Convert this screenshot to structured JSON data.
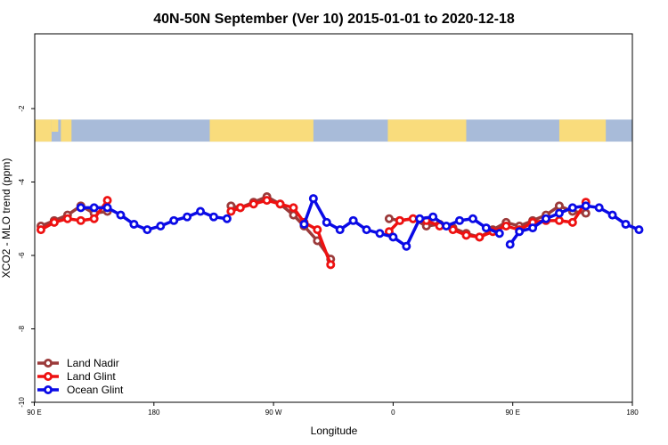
{
  "chart_data": {
    "type": "line",
    "title": "40N-50N September (Ver 10)   2015-01-01 to 2020-12-18",
    "xlabel": "Longitude",
    "ylabel": "XCO2 - MLO trend (ppm)",
    "xlim": [
      90,
      540
    ],
    "ylim": [
      -10,
      0
    ],
    "x_ticks": [
      {
        "value": 90,
        "label": "90 E"
      },
      {
        "value": 180,
        "label": "180"
      },
      {
        "value": 270,
        "label": "90 W"
      },
      {
        "value": 360,
        "label": "0"
      },
      {
        "value": 450,
        "label": "90 E"
      },
      {
        "value": 540,
        "label": "180"
      }
    ],
    "y_ticks": [
      {
        "value": -2,
        "label": "-2"
      },
      {
        "value": -4,
        "label": "-4"
      },
      {
        "value": -6,
        "label": "-6"
      },
      {
        "value": -8,
        "label": "-8"
      },
      {
        "value": -10,
        "label": "-10"
      }
    ],
    "map_band": {
      "ymin": -2.9,
      "ymax": -2.3,
      "ocean_color": "#a8bbd9",
      "land_color": "#f9dc7c"
    },
    "legend_position": "bottom-left",
    "series": [
      {
        "name": "Land Nadir",
        "color": "#9b3a3a",
        "segments": [
          [
            [
              95,
              -5.2
            ],
            [
              105,
              -5.05
            ],
            [
              115,
              -4.9
            ],
            [
              125,
              -4.65
            ],
            [
              135,
              -4.85
            ],
            [
              145,
              -4.8
            ]
          ],
          [
            [
              238,
              -4.65
            ],
            [
              245,
              -4.7
            ],
            [
              255,
              -4.55
            ],
            [
              265,
              -4.4
            ],
            [
              275,
              -4.6
            ],
            [
              285,
              -4.9
            ],
            [
              293,
              -5.2
            ],
            [
              303,
              -5.6
            ],
            [
              313,
              -6.1
            ]
          ],
          [
            [
              357,
              -5.0
            ],
            [
              365,
              -5.05
            ],
            [
              375,
              -5.0
            ],
            [
              385,
              -5.2
            ],
            [
              395,
              -5.15
            ],
            [
              405,
              -5.25
            ],
            [
              415,
              -5.4
            ],
            [
              425,
              -5.5
            ],
            [
              435,
              -5.3
            ],
            [
              445,
              -5.1
            ],
            [
              455,
              -5.2
            ],
            [
              465,
              -5.05
            ],
            [
              475,
              -4.9
            ],
            [
              485,
              -4.65
            ],
            [
              495,
              -4.8
            ],
            [
              505,
              -4.85
            ]
          ]
        ]
      },
      {
        "name": "Land Glint",
        "color": "#ee1111",
        "segments": [
          [
            [
              95,
              -5.3
            ],
            [
              105,
              -5.1
            ],
            [
              115,
              -5.0
            ],
            [
              125,
              -5.05
            ],
            [
              135,
              -5.0
            ],
            [
              145,
              -4.5
            ]
          ],
          [
            [
              238,
              -4.8
            ],
            [
              245,
              -4.7
            ],
            [
              255,
              -4.6
            ],
            [
              265,
              -4.5
            ],
            [
              275,
              -4.6
            ],
            [
              285,
              -4.7
            ],
            [
              293,
              -5.1
            ],
            [
              303,
              -5.3
            ],
            [
              313,
              -6.25
            ]
          ],
          [
            [
              357,
              -5.35
            ],
            [
              365,
              -5.05
            ],
            [
              375,
              -5.0
            ],
            [
              385,
              -5.05
            ],
            [
              395,
              -5.2
            ],
            [
              405,
              -5.3
            ],
            [
              415,
              -5.45
            ],
            [
              425,
              -5.5
            ],
            [
              435,
              -5.35
            ],
            [
              445,
              -5.2
            ],
            [
              455,
              -5.3
            ],
            [
              465,
              -5.1
            ],
            [
              475,
              -5.05
            ],
            [
              485,
              -5.05
            ],
            [
              495,
              -5.1
            ],
            [
              505,
              -4.55
            ]
          ]
        ]
      },
      {
        "name": "Ocean Glint",
        "color": "#0a0ae6",
        "segments": [
          [
            [
              125,
              -4.7
            ],
            [
              135,
              -4.7
            ],
            [
              145,
              -4.7
            ],
            [
              155,
              -4.9
            ],
            [
              165,
              -5.15
            ],
            [
              175,
              -5.3
            ],
            [
              185,
              -5.2
            ],
            [
              195,
              -5.05
            ],
            [
              205,
              -4.95
            ],
            [
              215,
              -4.8
            ],
            [
              225,
              -4.95
            ],
            [
              235,
              -5.0
            ]
          ],
          [
            [
              293,
              -5.15
            ],
            [
              300,
              -4.45
            ],
            [
              310,
              -5.1
            ],
            [
              320,
              -5.3
            ],
            [
              330,
              -5.05
            ],
            [
              340,
              -5.3
            ],
            [
              350,
              -5.4
            ],
            [
              360,
              -5.5
            ],
            [
              370,
              -5.75
            ],
            [
              380,
              -5.0
            ],
            [
              390,
              -4.95
            ],
            [
              400,
              -5.2
            ],
            [
              410,
              -5.05
            ],
            [
              420,
              -5.0
            ],
            [
              430,
              -5.25
            ],
            [
              440,
              -5.4
            ]
          ],
          [
            [
              448,
              -5.7
            ],
            [
              455,
              -5.35
            ],
            [
              465,
              -5.25
            ],
            [
              475,
              -5.0
            ],
            [
              485,
              -4.85
            ],
            [
              495,
              -4.7
            ],
            [
              505,
              -4.65
            ],
            [
              515,
              -4.7
            ],
            [
              525,
              -4.9
            ],
            [
              535,
              -5.15
            ],
            [
              545,
              -5.3
            ]
          ]
        ]
      }
    ]
  }
}
